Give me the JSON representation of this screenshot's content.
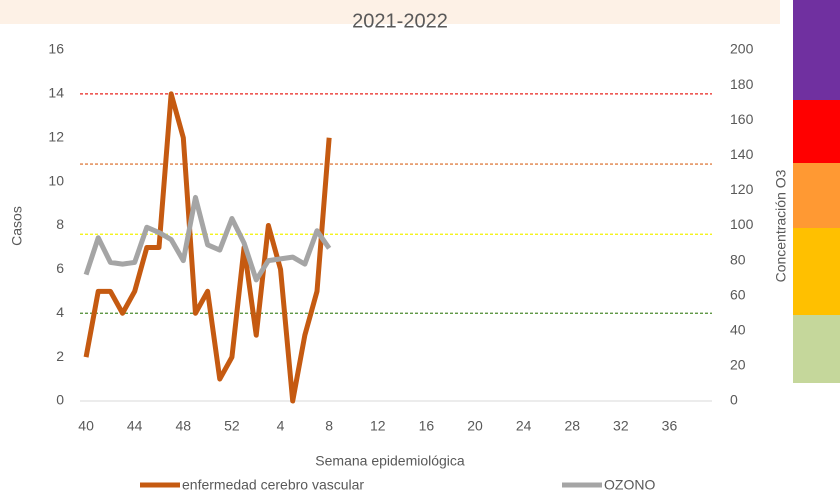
{
  "chart_data": {
    "type": "line",
    "title": "2021-2022",
    "x_label": "Semana epidemiológica",
    "y_label": "Casos",
    "y2_label": "Concentración O3",
    "categories": [
      "40",
      null,
      null,
      null,
      "44",
      null,
      null,
      null,
      "48",
      null,
      null,
      null,
      "52",
      null,
      null,
      null,
      "4",
      null,
      null,
      null,
      "8",
      null,
      null,
      null,
      "12",
      null,
      null,
      null,
      "16",
      null,
      null,
      null,
      "20",
      null,
      null,
      null,
      "24",
      null,
      null,
      null,
      "28",
      null,
      null,
      null,
      "32",
      null,
      null,
      null,
      "36",
      null,
      null,
      null
    ],
    "series": [
      {
        "name": "enfermedad cerebro vascular",
        "color": "#c55a11",
        "axis": "y",
        "values": [
          2,
          5,
          5,
          4,
          5,
          7,
          7,
          14,
          12,
          4,
          5,
          1,
          2,
          7,
          3,
          8,
          6,
          0,
          3,
          5,
          12,
          null,
          null,
          null,
          null,
          null,
          null,
          null,
          null,
          null,
          null,
          null,
          null,
          null,
          null,
          null,
          null,
          null,
          null,
          null,
          null,
          null,
          null,
          null,
          null,
          null,
          null,
          null,
          null,
          null,
          null,
          null
        ]
      },
      {
        "name": "OZONO",
        "color": "#a5a5a5",
        "axis": "y2",
        "values": [
          72,
          93,
          79,
          78,
          79,
          99,
          96,
          92,
          80,
          116,
          89,
          86,
          104,
          90,
          69,
          80,
          81,
          82,
          78,
          97,
          87,
          null,
          null,
          null,
          null,
          null,
          null,
          null,
          null,
          null,
          null,
          null,
          null,
          null,
          null,
          null,
          null,
          null,
          null,
          null,
          null,
          null,
          null,
          null,
          null,
          null,
          null,
          null,
          null,
          null,
          null,
          null
        ]
      }
    ],
    "reference_lines": [
      {
        "value": 175,
        "color": "#e8251f",
        "axis": "y2"
      },
      {
        "value": 135,
        "color": "#d9661f",
        "axis": "y2"
      },
      {
        "value": 95,
        "color": "#f2f200",
        "axis": "y2"
      },
      {
        "value": 50,
        "color": "#4b8a2e",
        "axis": "y2"
      }
    ],
    "ylim": [
      0,
      16
    ],
    "yticks": [
      0,
      2,
      4,
      6,
      8,
      10,
      12,
      14,
      16
    ],
    "y2lim": [
      0,
      200
    ],
    "y2ticks": [
      0,
      20,
      40,
      60,
      80,
      100,
      120,
      140,
      160,
      180,
      200
    ],
    "legend": "bottom"
  }
}
